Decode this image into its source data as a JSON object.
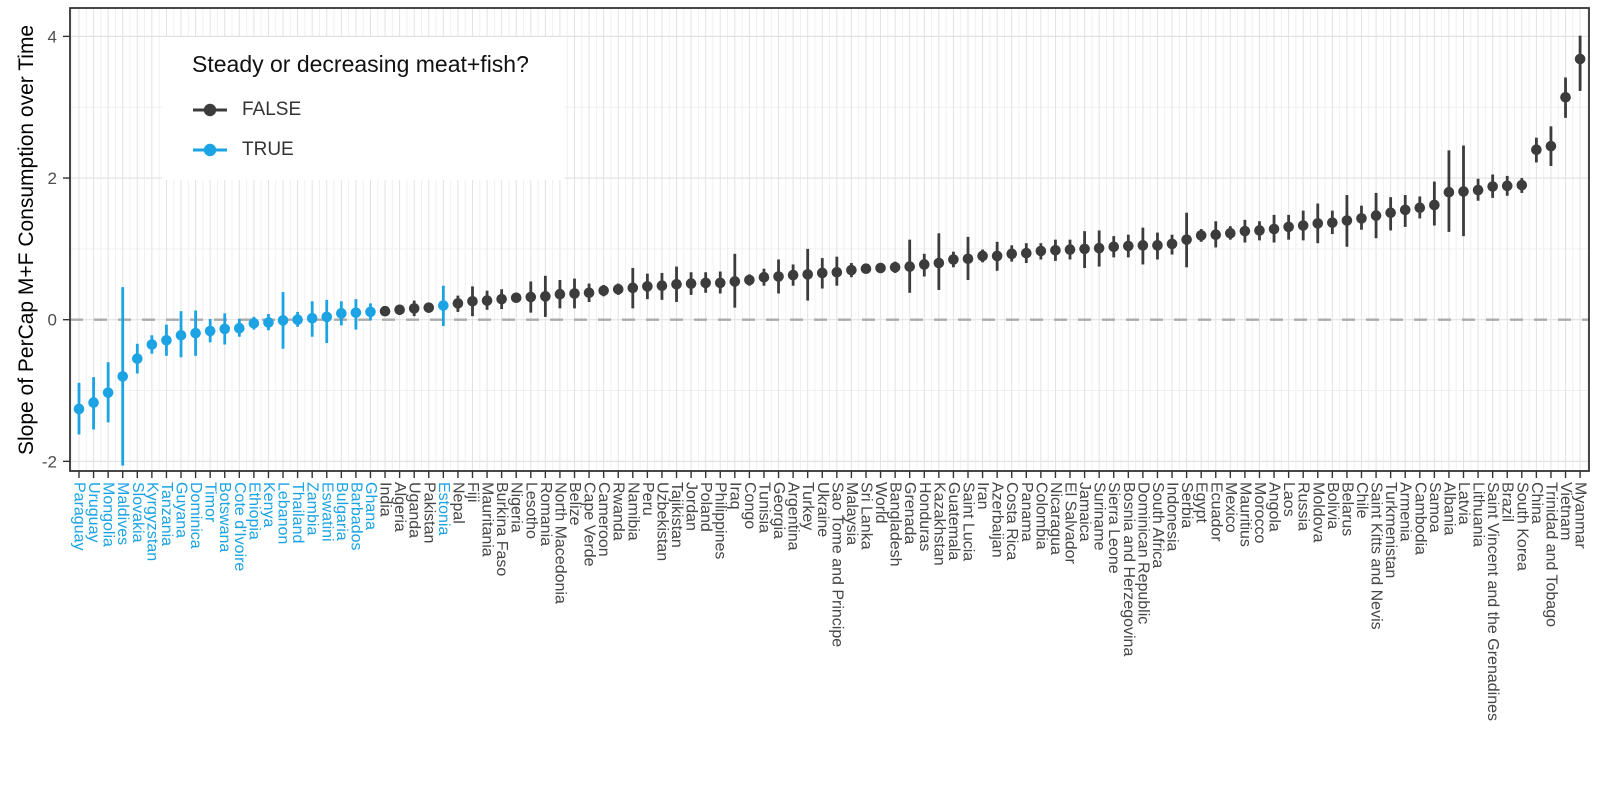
{
  "figure": {
    "y_axis_title": "Slope of PerCap M+F Consumption over Time",
    "legend": {
      "title": "Steady or decreasing meat+fish?",
      "entries": [
        {
          "label": "FALSE",
          "key": "false"
        },
        {
          "label": "TRUE",
          "key": "true"
        }
      ]
    }
  },
  "colors": {
    "false_series": "#3C3C3C",
    "true_series": "#1BA3E3",
    "grid_major": "#E2E2E2",
    "grid_minor": "#F0F0F0",
    "zero_line": "#ABABAB",
    "axis_tick_label": "#4D4D4D",
    "x_label_false": "#454545",
    "panel_border": "#333333",
    "background": "#FFFFFF"
  },
  "chart_data": {
    "type": "pointrange",
    "title": "",
    "xlabel": "",
    "ylabel": "Slope of PerCap M+F Consumption over Time",
    "legend_title": "Steady or decreasing meat+fish?",
    "legend_position": "top-left-inside",
    "grid": true,
    "ylim": [
      -2.13,
      4.4
    ],
    "y_ticks": [
      -2,
      0,
      2,
      4
    ],
    "y_minor_gridlines": [
      -1,
      1,
      3
    ],
    "zero_reference_line": 0,
    "series_colors": {
      "FALSE": "#3C3C3C",
      "TRUE": "#1BA3E3"
    },
    "points": [
      {
        "country": "Paraguay",
        "steady": true,
        "slope": -1.26,
        "lo": -1.62,
        "hi": -0.89
      },
      {
        "country": "Uruguay",
        "steady": true,
        "slope": -1.17,
        "lo": -1.55,
        "hi": -0.81
      },
      {
        "country": "Mongolia",
        "steady": true,
        "slope": -1.03,
        "lo": -1.45,
        "hi": -0.6
      },
      {
        "country": "Maldives",
        "steady": true,
        "slope": -0.8,
        "lo": -2.06,
        "hi": 0.46
      },
      {
        "country": "Slovakia",
        "steady": true,
        "slope": -0.55,
        "lo": -0.76,
        "hi": -0.34
      },
      {
        "country": "Kyrgyzstan",
        "steady": true,
        "slope": -0.35,
        "lo": -0.48,
        "hi": -0.22
      },
      {
        "country": "Tanzania",
        "steady": true,
        "slope": -0.29,
        "lo": -0.51,
        "hi": -0.07
      },
      {
        "country": "Guyana",
        "steady": true,
        "slope": -0.22,
        "lo": -0.53,
        "hi": 0.12
      },
      {
        "country": "Dominica",
        "steady": true,
        "slope": -0.19,
        "lo": -0.51,
        "hi": 0.13
      },
      {
        "country": "Timor",
        "steady": true,
        "slope": -0.16,
        "lo": -0.32,
        "hi": 0.01
      },
      {
        "country": "Botswana",
        "steady": true,
        "slope": -0.13,
        "lo": -0.35,
        "hi": 0.09
      },
      {
        "country": "Cote d'Ivoire",
        "steady": true,
        "slope": -0.12,
        "lo": -0.24,
        "hi": 0.01
      },
      {
        "country": "Ethiopia",
        "steady": true,
        "slope": -0.05,
        "lo": -0.14,
        "hi": 0.04
      },
      {
        "country": "Kenya",
        "steady": true,
        "slope": -0.04,
        "lo": -0.15,
        "hi": 0.08
      },
      {
        "country": "Lebanon",
        "steady": true,
        "slope": -0.01,
        "lo": -0.41,
        "hi": 0.39
      },
      {
        "country": "Thailand",
        "steady": true,
        "slope": 0.0,
        "lo": -0.1,
        "hi": 0.11
      },
      {
        "country": "Zambia",
        "steady": true,
        "slope": 0.02,
        "lo": -0.24,
        "hi": 0.26
      },
      {
        "country": "Eswatini",
        "steady": true,
        "slope": 0.04,
        "lo": -0.33,
        "hi": 0.28
      },
      {
        "country": "Bulgaria",
        "steady": true,
        "slope": 0.09,
        "lo": -0.08,
        "hi": 0.26
      },
      {
        "country": "Barbados",
        "steady": true,
        "slope": 0.1,
        "lo": -0.14,
        "hi": 0.29
      },
      {
        "country": "Ghana",
        "steady": true,
        "slope": 0.11,
        "lo": -0.01,
        "hi": 0.23
      },
      {
        "country": "India",
        "steady": false,
        "slope": 0.12,
        "lo": 0.07,
        "hi": 0.17
      },
      {
        "country": "Algeria",
        "steady": false,
        "slope": 0.14,
        "lo": 0.07,
        "hi": 0.21
      },
      {
        "country": "Uganda",
        "steady": false,
        "slope": 0.16,
        "lo": 0.05,
        "hi": 0.27
      },
      {
        "country": "Pakistan",
        "steady": false,
        "slope": 0.17,
        "lo": 0.1,
        "hi": 0.24
      },
      {
        "country": "Estonia",
        "steady": true,
        "slope": 0.2,
        "lo": -0.09,
        "hi": 0.48
      },
      {
        "country": "Nepal",
        "steady": false,
        "slope": 0.23,
        "lo": 0.11,
        "hi": 0.34
      },
      {
        "country": "Fiji",
        "steady": false,
        "slope": 0.26,
        "lo": 0.05,
        "hi": 0.47
      },
      {
        "country": "Mauritania",
        "steady": false,
        "slope": 0.27,
        "lo": 0.14,
        "hi": 0.41
      },
      {
        "country": "Burkina Faso",
        "steady": false,
        "slope": 0.29,
        "lo": 0.15,
        "hi": 0.43
      },
      {
        "country": "Nigeria",
        "steady": false,
        "slope": 0.31,
        "lo": 0.24,
        "hi": 0.38
      },
      {
        "country": "Lesotho",
        "steady": false,
        "slope": 0.32,
        "lo": 0.1,
        "hi": 0.54
      },
      {
        "country": "Romania",
        "steady": false,
        "slope": 0.33,
        "lo": 0.04,
        "hi": 0.62
      },
      {
        "country": "North Macedonia",
        "steady": false,
        "slope": 0.36,
        "lo": 0.16,
        "hi": 0.56
      },
      {
        "country": "Belize",
        "steady": false,
        "slope": 0.37,
        "lo": 0.16,
        "hi": 0.58
      },
      {
        "country": "Cape Verde",
        "steady": false,
        "slope": 0.38,
        "lo": 0.25,
        "hi": 0.51
      },
      {
        "country": "Cameroon",
        "steady": false,
        "slope": 0.41,
        "lo": 0.33,
        "hi": 0.49
      },
      {
        "country": "Rwanda",
        "steady": false,
        "slope": 0.43,
        "lo": 0.35,
        "hi": 0.51
      },
      {
        "country": "Namibia",
        "steady": false,
        "slope": 0.45,
        "lo": 0.16,
        "hi": 0.73
      },
      {
        "country": "Peru",
        "steady": false,
        "slope": 0.47,
        "lo": 0.29,
        "hi": 0.65
      },
      {
        "country": "Uzbekistan",
        "steady": false,
        "slope": 0.48,
        "lo": 0.28,
        "hi": 0.66
      },
      {
        "country": "Tajikistan",
        "steady": false,
        "slope": 0.5,
        "lo": 0.25,
        "hi": 0.75
      },
      {
        "country": "Jordan",
        "steady": false,
        "slope": 0.51,
        "lo": 0.35,
        "hi": 0.67
      },
      {
        "country": "Poland",
        "steady": false,
        "slope": 0.52,
        "lo": 0.38,
        "hi": 0.67
      },
      {
        "country": "Philippines",
        "steady": false,
        "slope": 0.52,
        "lo": 0.37,
        "hi": 0.68
      },
      {
        "country": "Iraq",
        "steady": false,
        "slope": 0.54,
        "lo": 0.17,
        "hi": 0.93
      },
      {
        "country": "Congo",
        "steady": false,
        "slope": 0.56,
        "lo": 0.48,
        "hi": 0.64
      },
      {
        "country": "Tunisia",
        "steady": false,
        "slope": 0.6,
        "lo": 0.48,
        "hi": 0.72
      },
      {
        "country": "Georgia",
        "steady": false,
        "slope": 0.61,
        "lo": 0.37,
        "hi": 0.85
      },
      {
        "country": "Argentina",
        "steady": false,
        "slope": 0.63,
        "lo": 0.48,
        "hi": 0.78
      },
      {
        "country": "Turkey",
        "steady": false,
        "slope": 0.64,
        "lo": 0.27,
        "hi": 1.0
      },
      {
        "country": "Ukraine",
        "steady": false,
        "slope": 0.66,
        "lo": 0.44,
        "hi": 0.87
      },
      {
        "country": "Sao Tome and Principe",
        "steady": false,
        "slope": 0.67,
        "lo": 0.48,
        "hi": 0.89
      },
      {
        "country": "Malaysia",
        "steady": false,
        "slope": 0.7,
        "lo": 0.6,
        "hi": 0.8
      },
      {
        "country": "Sri Lanka",
        "steady": false,
        "slope": 0.72,
        "lo": 0.65,
        "hi": 0.79
      },
      {
        "country": "World",
        "steady": false,
        "slope": 0.73,
        "lo": 0.69,
        "hi": 0.77
      },
      {
        "country": "Bangladesh",
        "steady": false,
        "slope": 0.74,
        "lo": 0.66,
        "hi": 0.82
      },
      {
        "country": "Grenada",
        "steady": false,
        "slope": 0.75,
        "lo": 0.38,
        "hi": 1.13
      },
      {
        "country": "Honduras",
        "steady": false,
        "slope": 0.78,
        "lo": 0.61,
        "hi": 0.93
      },
      {
        "country": "Kazakhstan",
        "steady": false,
        "slope": 0.8,
        "lo": 0.42,
        "hi": 1.22
      },
      {
        "country": "Guatemala",
        "steady": false,
        "slope": 0.85,
        "lo": 0.74,
        "hi": 0.96
      },
      {
        "country": "Saint Lucia",
        "steady": false,
        "slope": 0.86,
        "lo": 0.56,
        "hi": 1.17
      },
      {
        "country": "Iran",
        "steady": false,
        "slope": 0.9,
        "lo": 0.81,
        "hi": 0.99
      },
      {
        "country": "Azerbaijan",
        "steady": false,
        "slope": 0.9,
        "lo": 0.69,
        "hi": 1.1
      },
      {
        "country": "Costa Rica",
        "steady": false,
        "slope": 0.93,
        "lo": 0.82,
        "hi": 1.05
      },
      {
        "country": "Panama",
        "steady": false,
        "slope": 0.94,
        "lo": 0.8,
        "hi": 1.08
      },
      {
        "country": "Colombia",
        "steady": false,
        "slope": 0.97,
        "lo": 0.85,
        "hi": 1.08
      },
      {
        "country": "Nicaragua",
        "steady": false,
        "slope": 0.98,
        "lo": 0.83,
        "hi": 1.13
      },
      {
        "country": "El Salvador",
        "steady": false,
        "slope": 0.99,
        "lo": 0.85,
        "hi": 1.13
      },
      {
        "country": "Jamaica",
        "steady": false,
        "slope": 1.0,
        "lo": 0.73,
        "hi": 1.25
      },
      {
        "country": "Suriname",
        "steady": false,
        "slope": 1.01,
        "lo": 0.75,
        "hi": 1.26
      },
      {
        "country": "Sierra Leone",
        "steady": false,
        "slope": 1.03,
        "lo": 0.88,
        "hi": 1.18
      },
      {
        "country": "Bosnia and Herzegovina",
        "steady": false,
        "slope": 1.04,
        "lo": 0.88,
        "hi": 1.2
      },
      {
        "country": "Dominican Republic",
        "steady": false,
        "slope": 1.05,
        "lo": 0.78,
        "hi": 1.3
      },
      {
        "country": "South Africa",
        "steady": false,
        "slope": 1.05,
        "lo": 0.85,
        "hi": 1.23
      },
      {
        "country": "Indonesia",
        "steady": false,
        "slope": 1.07,
        "lo": 0.92,
        "hi": 1.2
      },
      {
        "country": "Serbia",
        "steady": false,
        "slope": 1.13,
        "lo": 0.74,
        "hi": 1.51
      },
      {
        "country": "Egypt",
        "steady": false,
        "slope": 1.19,
        "lo": 1.1,
        "hi": 1.28
      },
      {
        "country": "Ecuador",
        "steady": false,
        "slope": 1.2,
        "lo": 1.02,
        "hi": 1.39
      },
      {
        "country": "Mexico",
        "steady": false,
        "slope": 1.22,
        "lo": 1.13,
        "hi": 1.32
      },
      {
        "country": "Mauritius",
        "steady": false,
        "slope": 1.25,
        "lo": 1.09,
        "hi": 1.41
      },
      {
        "country": "Morocco",
        "steady": false,
        "slope": 1.26,
        "lo": 1.12,
        "hi": 1.39
      },
      {
        "country": "Angola",
        "steady": false,
        "slope": 1.28,
        "lo": 1.09,
        "hi": 1.48
      },
      {
        "country": "Laos",
        "steady": false,
        "slope": 1.31,
        "lo": 1.13,
        "hi": 1.48
      },
      {
        "country": "Russia",
        "steady": false,
        "slope": 1.33,
        "lo": 1.12,
        "hi": 1.54
      },
      {
        "country": "Moldova",
        "steady": false,
        "slope": 1.36,
        "lo": 1.08,
        "hi": 1.64
      },
      {
        "country": "Bolivia",
        "steady": false,
        "slope": 1.37,
        "lo": 1.21,
        "hi": 1.54
      },
      {
        "country": "Belarus",
        "steady": false,
        "slope": 1.4,
        "lo": 1.03,
        "hi": 1.76
      },
      {
        "country": "Chile",
        "steady": false,
        "slope": 1.43,
        "lo": 1.27,
        "hi": 1.61
      },
      {
        "country": "Saint Kitts and Nevis",
        "steady": false,
        "slope": 1.47,
        "lo": 1.15,
        "hi": 1.79
      },
      {
        "country": "Turkmenistan",
        "steady": false,
        "slope": 1.51,
        "lo": 1.26,
        "hi": 1.73
      },
      {
        "country": "Armenia",
        "steady": false,
        "slope": 1.55,
        "lo": 1.31,
        "hi": 1.76
      },
      {
        "country": "Cambodia",
        "steady": false,
        "slope": 1.58,
        "lo": 1.43,
        "hi": 1.74
      },
      {
        "country": "Samoa",
        "steady": false,
        "slope": 1.62,
        "lo": 1.33,
        "hi": 1.95
      },
      {
        "country": "Albania",
        "steady": false,
        "slope": 1.8,
        "lo": 1.24,
        "hi": 2.39
      },
      {
        "country": "Latvia",
        "steady": false,
        "slope": 1.81,
        "lo": 1.18,
        "hi": 2.46
      },
      {
        "country": "Lithuania",
        "steady": false,
        "slope": 1.83,
        "lo": 1.68,
        "hi": 1.99
      },
      {
        "country": "Saint Vincent and the Grenadines",
        "steady": false,
        "slope": 1.88,
        "lo": 1.72,
        "hi": 2.05
      },
      {
        "country": "Brazil",
        "steady": false,
        "slope": 1.89,
        "lo": 1.75,
        "hi": 2.03
      },
      {
        "country": "South Korea",
        "steady": false,
        "slope": 1.9,
        "lo": 1.79,
        "hi": 2.0
      },
      {
        "country": "China",
        "steady": false,
        "slope": 2.4,
        "lo": 2.22,
        "hi": 2.57
      },
      {
        "country": "Trinidad and Tobago",
        "steady": false,
        "slope": 2.45,
        "lo": 2.17,
        "hi": 2.73
      },
      {
        "country": "Vietnam",
        "steady": false,
        "slope": 3.14,
        "lo": 2.85,
        "hi": 3.42
      },
      {
        "country": "Myanmar",
        "steady": false,
        "slope": 3.68,
        "lo": 3.23,
        "hi": 4.01
      }
    ]
  }
}
